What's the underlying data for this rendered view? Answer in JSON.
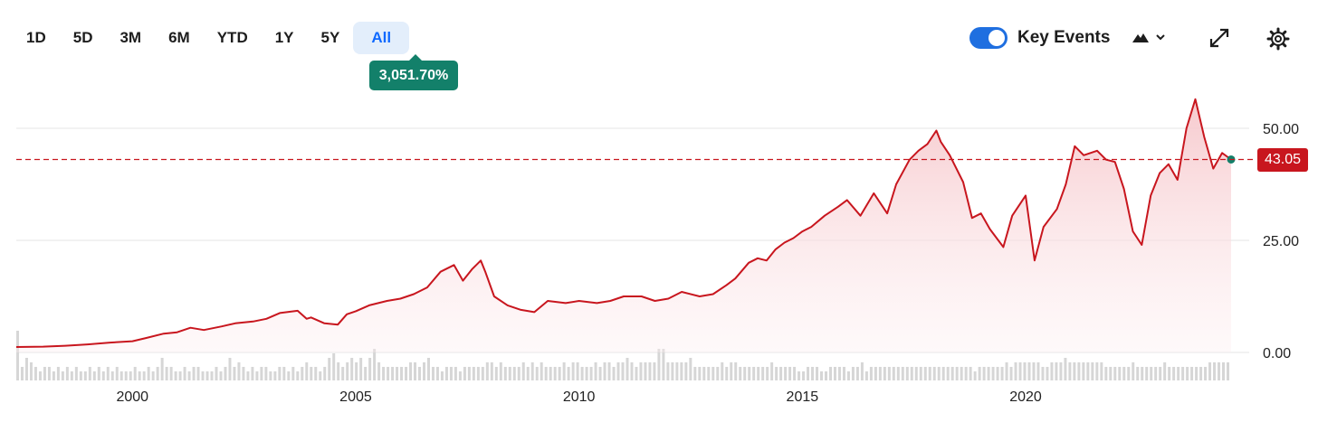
{
  "range_tabs": [
    {
      "label": "1D"
    },
    {
      "label": "5D"
    },
    {
      "label": "3M"
    },
    {
      "label": "6M"
    },
    {
      "label": "YTD"
    },
    {
      "label": "1Y"
    },
    {
      "label": "5Y"
    },
    {
      "label": "All",
      "active": true
    }
  ],
  "change_badge": "3,051.70%",
  "toolbar": {
    "key_events_label": "Key Events",
    "key_events_on": true,
    "icons": [
      "mountain-chart-icon",
      "chevron-down-icon",
      "expand-icon",
      "gear-icon"
    ]
  },
  "current_price": "43.05",
  "colors": {
    "line": "#c8161e",
    "fill_top": "#f6c7cb",
    "volume": "#d6d6d6",
    "badge": "#13806a",
    "active_tab_bg": "#e3eefb",
    "active_tab_text": "#0f69ff",
    "toggle": "#1f6fe0",
    "last_point": "#13806a"
  },
  "chart_data": {
    "type": "area",
    "title": "",
    "xlabel": "",
    "ylabel": "",
    "xlim": [
      1997.4,
      2024.6
    ],
    "ylim": [
      0,
      55
    ],
    "yticks": [
      0,
      25,
      50
    ],
    "ytick_labels": [
      "0.00",
      "25.00",
      "50.00"
    ],
    "xticks": [
      2000,
      2005,
      2010,
      2015,
      2020
    ],
    "xtick_labels": [
      "2000",
      "2005",
      "2010",
      "2015",
      "2020"
    ],
    "grid": "horizontal",
    "reference_line": 43.05,
    "series": [
      {
        "x": [
          1997.4,
          1998.0,
          1998.5,
          1999.0,
          1999.5,
          2000.0,
          2000.3,
          2000.7,
          2001.0,
          2001.3,
          2001.6,
          2002.0,
          2002.3,
          2002.7,
          2003.0,
          2003.3,
          2003.7,
          2003.9,
          2004.0,
          2004.3,
          2004.6,
          2004.8,
          2005.0,
          2005.3,
          2005.7,
          2006.0,
          2006.3,
          2006.6,
          2006.9,
          2007.2,
          2007.4,
          2007.6,
          2007.8,
          2007.9,
          2008.1,
          2008.4,
          2008.7,
          2009.0,
          2009.3,
          2009.7,
          2010.0,
          2010.4,
          2010.7,
          2011.0,
          2011.4,
          2011.7,
          2012.0,
          2012.3,
          2012.7,
          2013.0,
          2013.3,
          2013.5,
          2013.8,
          2014.0,
          2014.2,
          2014.4,
          2014.6,
          2014.8,
          2015.0,
          2015.2,
          2015.5,
          2015.8,
          2016.0,
          2016.3,
          2016.6,
          2016.9,
          2017.1,
          2017.4,
          2017.6,
          2017.8,
          2018.0,
          2018.1,
          2018.3,
          2018.6,
          2018.8,
          2019.0,
          2019.2,
          2019.5,
          2019.7,
          2020.0,
          2020.2,
          2020.4,
          2020.7,
          2020.9,
          2021.1,
          2021.3,
          2021.6,
          2021.8,
          2022.0,
          2022.2,
          2022.4,
          2022.6,
          2022.8,
          2023.0,
          2023.2,
          2023.4,
          2023.6,
          2023.8,
          2024.0,
          2024.2,
          2024.4,
          2024.6
        ],
        "y": [
          1.2,
          1.3,
          1.5,
          1.8,
          2.2,
          2.5,
          3.2,
          4.2,
          4.5,
          5.5,
          5.0,
          5.8,
          6.5,
          6.9,
          7.5,
          8.8,
          9.3,
          7.5,
          7.8,
          6.5,
          6.2,
          8.5,
          9.2,
          10.5,
          11.5,
          12.0,
          13.0,
          14.5,
          18.0,
          19.5,
          16.0,
          18.5,
          20.5,
          18.0,
          12.5,
          10.5,
          9.5,
          9.0,
          11.5,
          11.0,
          11.5,
          11.0,
          11.5,
          12.5,
          12.5,
          11.5,
          12.0,
          13.5,
          12.5,
          13.0,
          15.0,
          16.5,
          20.0,
          21.0,
          20.5,
          23.0,
          24.5,
          25.5,
          27.0,
          28.0,
          30.5,
          32.5,
          34.0,
          30.5,
          35.5,
          31.0,
          37.5,
          43.0,
          45.0,
          46.5,
          49.5,
          47.0,
          44.0,
          38.0,
          30.0,
          31.0,
          27.5,
          23.5,
          30.5,
          35.0,
          20.5,
          28.0,
          32.0,
          37.5,
          46.0,
          44.0,
          45.0,
          43.0,
          42.5,
          36.5,
          27.0,
          24.0,
          35.0,
          40.0,
          42.0,
          38.5,
          50.0,
          56.5,
          48.0,
          41.0,
          44.5,
          43.05
        ]
      }
    ],
    "volume": [
      11,
      3,
      5,
      4,
      3,
      2,
      3,
      3,
      2,
      3,
      2,
      3,
      2,
      3,
      2,
      2,
      3,
      2,
      3,
      2,
      3,
      2,
      3,
      2,
      2,
      2,
      3,
      2,
      2,
      3,
      2,
      3,
      5,
      3,
      3,
      2,
      2,
      3,
      2,
      3,
      3,
      2,
      2,
      2,
      3,
      2,
      3,
      5,
      3,
      4,
      3,
      2,
      3,
      2,
      3,
      3,
      2,
      2,
      3,
      3,
      2,
      3,
      2,
      3,
      4,
      3,
      3,
      2,
      3,
      5,
      6,
      4,
      3,
      4,
      5,
      4,
      5,
      3,
      5,
      7,
      4,
      3,
      3,
      3,
      3,
      3,
      3,
      4,
      4,
      3,
      4,
      5,
      3,
      3,
      2,
      3,
      3,
      3,
      2,
      3,
      3,
      3,
      3,
      3,
      4,
      4,
      3,
      4,
      3,
      3,
      3,
      3,
      4,
      3,
      4,
      3,
      4,
      3,
      3,
      3,
      3,
      4,
      3,
      4,
      4,
      3,
      3,
      3,
      4,
      3,
      4,
      4,
      3,
      4,
      4,
      5,
      4,
      3,
      4,
      4,
      4,
      4,
      7,
      7,
      4,
      4,
      4,
      4,
      4,
      5,
      3,
      3,
      3,
      3,
      3,
      3,
      4,
      3,
      4,
      4,
      3,
      3,
      3,
      3,
      3,
      3,
      3,
      4,
      3,
      3,
      3,
      3,
      3,
      2,
      2,
      3,
      3,
      3,
      2,
      2,
      3,
      3,
      3,
      3,
      2,
      3,
      3,
      4,
      2,
      3,
      3,
      3,
      3,
      3,
      3,
      3,
      3,
      3,
      3,
      3,
      3,
      3,
      3,
      3,
      3,
      3,
      3,
      3,
      3,
      3,
      3,
      3,
      2,
      3,
      3,
      3,
      3,
      3,
      3,
      4,
      3,
      4,
      4,
      4,
      4,
      4,
      4,
      3,
      3,
      4,
      4,
      4,
      5,
      4,
      4,
      4,
      4,
      4,
      4,
      4,
      4,
      3,
      3,
      3,
      3,
      3,
      3,
      4,
      3,
      3,
      3,
      3,
      3,
      3,
      4,
      3,
      3,
      3,
      3,
      3,
      3,
      3,
      3,
      3,
      4,
      4,
      4,
      4,
      4
    ]
  }
}
